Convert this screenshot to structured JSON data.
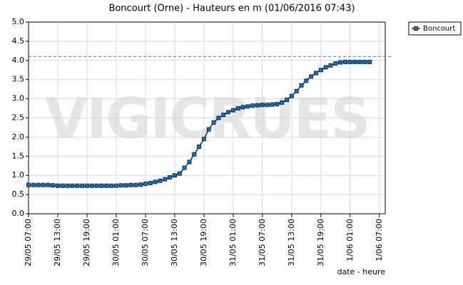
{
  "chart_data": {
    "type": "line",
    "title": "Boncourt (Orne) - Hauteurs en m (01/06/2016 07:43)",
    "watermark": "VIGICRUES",
    "x_label": "date - heure",
    "x": [
      0,
      1,
      2,
      3,
      4,
      5,
      6,
      7,
      8,
      9,
      10,
      11,
      12,
      13,
      14,
      15,
      16,
      17,
      18,
      19,
      20,
      21,
      22,
      23,
      24,
      25,
      26,
      27,
      28,
      29,
      30,
      31,
      32,
      33,
      34,
      35,
      36,
      37,
      38,
      39,
      40,
      41,
      42,
      43,
      44,
      45,
      46,
      47,
      48,
      49,
      50,
      51,
      52,
      53,
      54,
      55,
      56,
      57,
      58,
      59,
      60,
      61,
      62,
      63,
      64,
      65,
      66,
      67,
      68,
      69,
      70
    ],
    "series": [
      {
        "name": "Boncourt",
        "color": "#1f6fb4",
        "line_color": "#0b2a4a",
        "values": [
          0.75,
          0.75,
          0.75,
          0.75,
          0.75,
          0.74,
          0.73,
          0.73,
          0.73,
          0.73,
          0.73,
          0.73,
          0.73,
          0.73,
          0.73,
          0.73,
          0.73,
          0.73,
          0.73,
          0.74,
          0.74,
          0.75,
          0.75,
          0.76,
          0.78,
          0.8,
          0.83,
          0.86,
          0.9,
          0.95,
          1.0,
          1.05,
          1.2,
          1.35,
          1.55,
          1.75,
          1.95,
          2.2,
          2.38,
          2.5,
          2.58,
          2.65,
          2.7,
          2.75,
          2.78,
          2.8,
          2.82,
          2.83,
          2.84,
          2.84,
          2.85,
          2.86,
          2.9,
          2.97,
          3.07,
          3.2,
          3.35,
          3.47,
          3.58,
          3.67,
          3.75,
          3.82,
          3.87,
          3.92,
          3.95,
          3.96,
          3.96,
          3.96,
          3.96,
          3.96,
          3.96
        ]
      }
    ],
    "reference_line": 4.1,
    "reference_color": "#2a8fd0",
    "xlim": [
      0,
      73.2
    ],
    "xticks": [
      {
        "value": 0,
        "label": "29/05 07:00"
      },
      {
        "value": 6,
        "label": "29/05 13:00"
      },
      {
        "value": 12,
        "label": "29/05 19:00"
      },
      {
        "value": 18,
        "label": "30/05 01:00"
      },
      {
        "value": 24,
        "label": "30/05 07:00"
      },
      {
        "value": 30,
        "label": "30/05 13:00"
      },
      {
        "value": 36,
        "label": "30/05 19:00"
      },
      {
        "value": 42,
        "label": "31/05 01:00"
      },
      {
        "value": 48,
        "label": "31/05 07:00"
      },
      {
        "value": 54,
        "label": "31/05 13:00"
      },
      {
        "value": 60,
        "label": "31/05 19:00"
      },
      {
        "value": 66,
        "label": "1/06 01:00"
      },
      {
        "value": 72,
        "label": "1/06 07:00"
      }
    ],
    "ylim": [
      0,
      5
    ],
    "yticks": [
      {
        "value": 0,
        "label": "0.0"
      },
      0.5,
      {
        "value": 1,
        "label": "1.0"
      },
      1.5,
      {
        "value": 2,
        "label": "2.0"
      },
      2.5,
      {
        "value": 3,
        "label": "3.0"
      },
      3.5,
      {
        "value": 4,
        "label": "4.0"
      },
      4.5,
      {
        "value": 5,
        "label": "5.0"
      }
    ],
    "grid": true,
    "legend": "top-right"
  }
}
